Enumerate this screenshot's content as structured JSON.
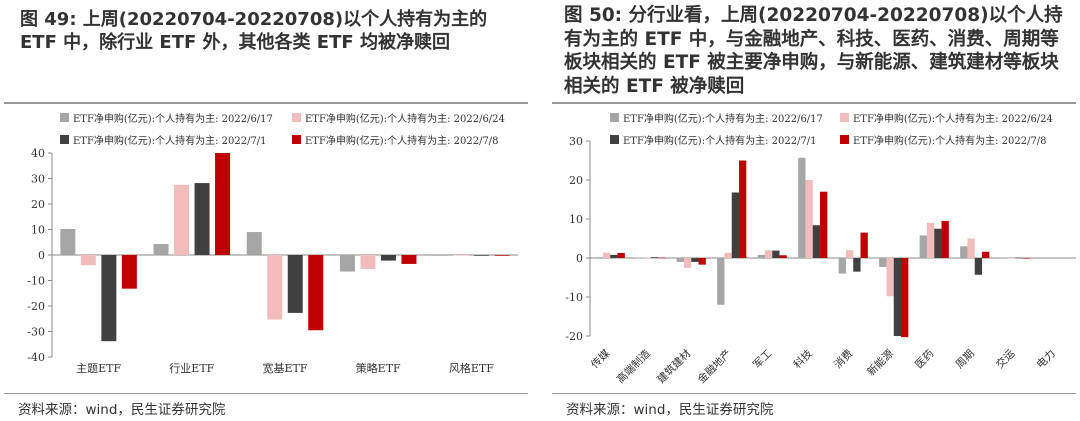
{
  "panels": [
    {
      "title": "图 49: 上周(20220704-20220708)以个人持有为主的 ETF 中，除行业 ETF 外，其他各类 ETF 均被净赎回",
      "source": "资料来源：wind，民生证券研究院"
    },
    {
      "title": "图 50: 分行业看，上周(20220704-20220708)以个人持有为主的 ETF 中，与金融地产、科技、医药、消费、周期等板块相关的 ETF 被主要净申购，与新能源、建筑建材等板块相关的 ETF 被净赎回",
      "source": "资料来源：wind，民生证券研究院"
    }
  ],
  "chart_data": [
    {
      "type": "bar",
      "categories": [
        "主题ETF",
        "行业ETF",
        "宽基ETF",
        "策略ETF",
        "风格ETF"
      ],
      "series": [
        {
          "name": "ETF净申购(亿元):个人持有为主: 2022/6/17",
          "color": "#a6a6a6",
          "values": [
            10.2,
            4.3,
            9.0,
            -6.5,
            -0.3
          ]
        },
        {
          "name": "ETF净申购(亿元):个人持有为主: 2022/6/24",
          "color": "#f2bcbc",
          "values": [
            -4.0,
            27.5,
            -25.3,
            -5.5,
            -0.2
          ]
        },
        {
          "name": "ETF净申购(亿元):个人持有为主: 2022/7/1",
          "color": "#404040",
          "values": [
            -33.8,
            28.2,
            -22.7,
            -2.2,
            -0.3
          ]
        },
        {
          "name": "ETF净申购(亿元):个人持有为主: 2022/7/8",
          "color": "#c00000",
          "values": [
            -13.2,
            40.0,
            -29.5,
            -3.5,
            -0.3
          ]
        }
      ],
      "ylim": [
        -40,
        40
      ],
      "yticks": [
        40,
        30,
        20,
        10,
        0,
        -10,
        -20,
        -30,
        -40
      ],
      "legend": "top",
      "grid": false
    },
    {
      "type": "bar",
      "categories": [
        "传媒",
        "高端制造",
        "建筑建材",
        "金融地产",
        "军工",
        "科技",
        "消费",
        "新能源",
        "医药",
        "周期",
        "交运",
        "电力"
      ],
      "series": [
        {
          "name": "ETF净申购(亿元):个人持有为主: 2022/6/17",
          "color": "#a6a6a6",
          "values": [
            0.2,
            0.1,
            -1.0,
            -12.0,
            0.8,
            25.7,
            -4.0,
            -2.3,
            5.8,
            3.0,
            0.1,
            0.0
          ]
        },
        {
          "name": "ETF净申购(亿元):个人持有为主: 2022/6/24",
          "color": "#f2bcbc",
          "values": [
            1.4,
            0.1,
            -2.5,
            1.3,
            2.0,
            20.0,
            2.0,
            -9.8,
            9.0,
            5.0,
            -0.1,
            0.0
          ]
        },
        {
          "name": "ETF净申购(亿元):个人持有为主: 2022/7/1",
          "color": "#404040",
          "values": [
            0.8,
            0.2,
            -1.0,
            16.8,
            1.9,
            8.4,
            -3.5,
            -20.0,
            7.5,
            -4.3,
            0.1,
            0.0
          ]
        },
        {
          "name": "ETF净申购(亿元):个人持有为主: 2022/7/8",
          "color": "#c00000",
          "values": [
            1.3,
            0.1,
            -1.7,
            25.0,
            0.7,
            17.0,
            6.5,
            -20.3,
            9.5,
            1.6,
            -0.1,
            0.0
          ]
        }
      ],
      "ylim": [
        -20,
        30
      ],
      "yticks": [
        30,
        20,
        10,
        0,
        -10,
        -20
      ],
      "legend": "top",
      "grid": false
    }
  ]
}
